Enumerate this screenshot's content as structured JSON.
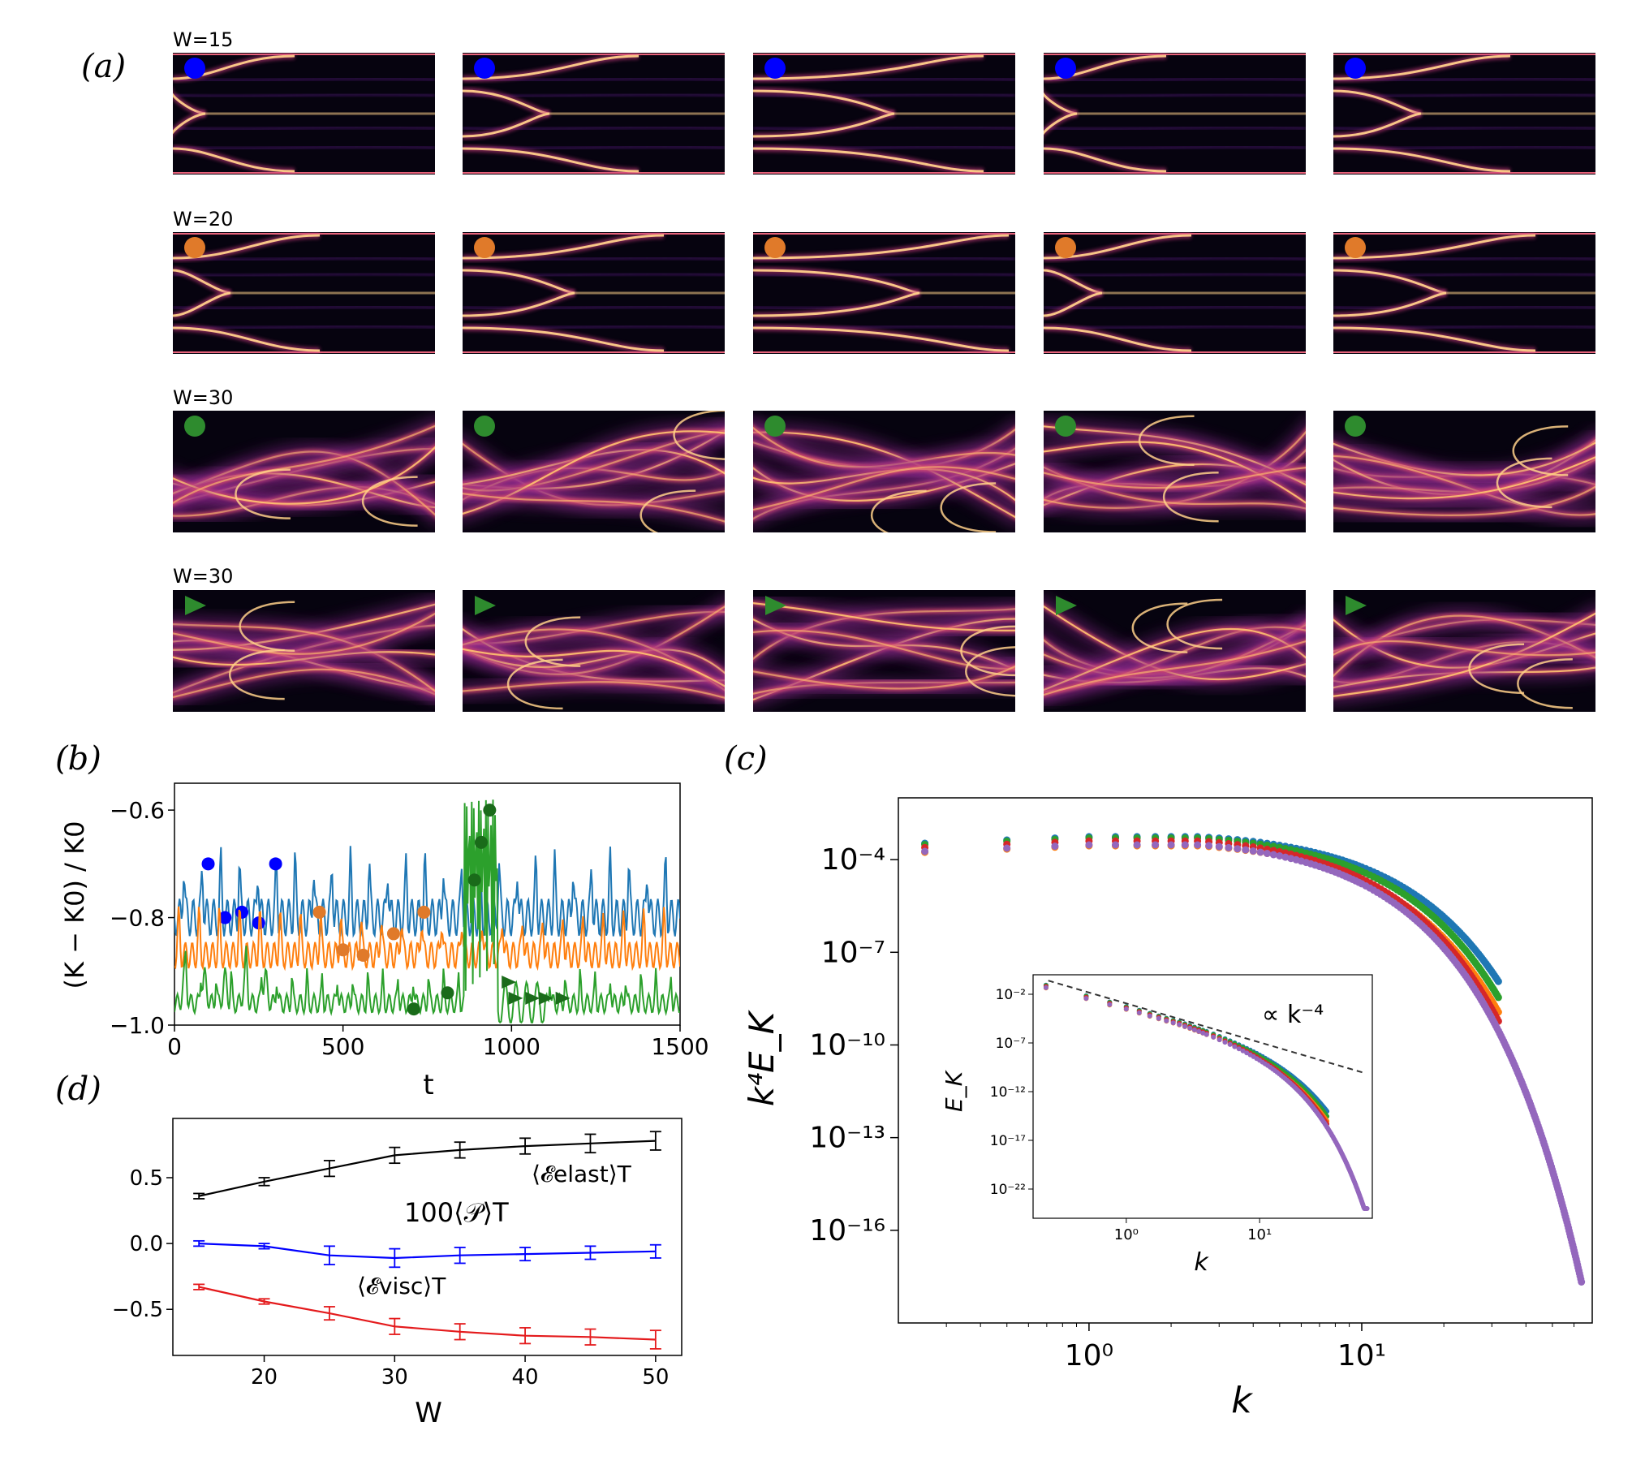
{
  "panel_labels": {
    "a": "(a)",
    "b": "(b)",
    "c": "(c)",
    "d": "(d)"
  },
  "panel_a": {
    "rows": [
      {
        "label": "W=15",
        "marker": "circle",
        "color": "#0000ff",
        "pattern": "laminar"
      },
      {
        "label": "W=20",
        "marker": "circle",
        "color": "#e07a2a",
        "pattern": "laminar"
      },
      {
        "label": "W=30",
        "marker": "circle",
        "color": "#2e8b2e",
        "pattern": "chaotic"
      },
      {
        "label": "W=30",
        "marker": "triangle",
        "color": "#2e8b2e",
        "pattern": "chaotic"
      }
    ],
    "columns": 5
  },
  "chart_data": [
    {
      "panel": "b",
      "type": "line",
      "xlabel": "t",
      "ylabel": "(K − K0) / K0",
      "xlim": [
        0,
        1500
      ],
      "ylim": [
        -1.0,
        -0.55
      ],
      "xticks": [
        "0",
        "500",
        "1000",
        "1500"
      ],
      "yticks": [
        "−0.6",
        "−0.8",
        "−1.0"
      ],
      "series": [
        {
          "color": "#1f77b4",
          "baseline": -0.8,
          "amplitude": 0.1,
          "period": 55,
          "markers": {
            "color": "#0000ff",
            "shape": "circle",
            "points": [
              [
                100,
                -0.7
              ],
              [
                150,
                -0.8
              ],
              [
                200,
                -0.79
              ],
              [
                250,
                -0.81
              ],
              [
                300,
                -0.7
              ]
            ]
          }
        },
        {
          "color": "#ff7f0e",
          "baseline": -0.87,
          "amplitude": 0.07,
          "period": 60,
          "markers": {
            "color": "#e07a2a",
            "shape": "circle",
            "points": [
              [
                430,
                -0.79
              ],
              [
                500,
                -0.86
              ],
              [
                560,
                -0.87
              ],
              [
                650,
                -0.83
              ],
              [
                740,
                -0.79
              ]
            ]
          }
        },
        {
          "color": "#2ca02c",
          "baseline": -0.96,
          "amplitude": 0.05,
          "period": 45,
          "markers": {
            "color": "#1a6b1a",
            "shape": "circle",
            "points": [
              [
                710,
                -0.97
              ],
              [
                810,
                -0.94
              ],
              [
                890,
                -0.73
              ],
              [
                910,
                -0.66
              ],
              [
                935,
                -0.6
              ]
            ]
          },
          "markers2": {
            "color": "#1a6b1a",
            "shape": "triangle",
            "points": [
              [
                990,
                -0.92
              ],
              [
                1010,
                -0.95
              ],
              [
                1060,
                -0.95
              ],
              [
                1100,
                -0.95
              ],
              [
                1150,
                -0.95
              ]
            ]
          }
        }
      ]
    },
    {
      "panel": "c",
      "type": "scatter",
      "xlabel": "k",
      "ylabel": "k⁴E_K",
      "x_scale": "log",
      "y_scale": "log",
      "xlim": [
        0.2,
        70
      ],
      "ylim": [
        1e-19,
        0.01
      ],
      "xticks": [
        "10⁰",
        "10¹"
      ],
      "yticks": [
        "10⁻⁴",
        "10⁻⁷",
        "10⁻¹⁰",
        "10⁻¹³",
        "10⁻¹⁶"
      ],
      "series": [
        {
          "color": "#1f77b4",
          "kmax": 32,
          "kc": 9.5,
          "level": 0.00055,
          "end": 1e-08
        },
        {
          "color": "#2ca02c",
          "kmax": 32,
          "kc": 8.5,
          "level": 0.0005,
          "end": 3e-09
        },
        {
          "color": "#ff7f0e",
          "kmax": 32,
          "kc": 8,
          "level": 0.00028,
          "end": 1e-09
        },
        {
          "color": "#d62728",
          "kmax": 32,
          "kc": 7.5,
          "level": 0.0004,
          "end": 5e-10
        },
        {
          "color": "#9467bd",
          "kmax": 64,
          "kc": 7,
          "level": 0.0003,
          "end": 2e-18
        }
      ],
      "inset": {
        "xlabel": "k",
        "ylabel": "E_K",
        "xticks": [
          "10⁰",
          "10¹"
        ],
        "yticks": [
          "10⁻²",
          "10⁻⁷",
          "10⁻¹²",
          "10⁻¹⁷",
          "10⁻²²"
        ],
        "reference_label": "∝ k⁻⁴",
        "reference_slope": -4
      }
    },
    {
      "panel": "d",
      "type": "line",
      "xlabel": "W",
      "x": [
        15,
        20,
        25,
        30,
        35,
        40,
        45,
        50
      ],
      "xlim": [
        13,
        52
      ],
      "ylim": [
        -0.85,
        0.95
      ],
      "xticks": [
        "20",
        "30",
        "40",
        "50"
      ],
      "yticks": [
        "0.5",
        "0.0",
        "−0.5"
      ],
      "series": [
        {
          "name": "⟨𝓔elast⟩T",
          "color": "#000000",
          "values": [
            0.36,
            0.47,
            0.57,
            0.67,
            0.71,
            0.74,
            0.76,
            0.78
          ],
          "errors": [
            0.02,
            0.03,
            0.06,
            0.06,
            0.06,
            0.06,
            0.07,
            0.07
          ]
        },
        {
          "name": "100⟨𝒫⟩T",
          "color": "#0000ff",
          "values": [
            0.0,
            -0.02,
            -0.09,
            -0.11,
            -0.09,
            -0.08,
            -0.07,
            -0.06
          ],
          "errors": [
            0.02,
            0.02,
            0.07,
            0.07,
            0.06,
            0.05,
            0.05,
            0.05
          ]
        },
        {
          "name": "⟨𝓔visc⟩T",
          "color": "#e41a1c",
          "values": [
            -0.33,
            -0.44,
            -0.53,
            -0.63,
            -0.67,
            -0.7,
            -0.71,
            -0.73
          ],
          "errors": [
            0.02,
            0.02,
            0.05,
            0.06,
            0.06,
            0.06,
            0.06,
            0.07
          ]
        }
      ]
    }
  ]
}
